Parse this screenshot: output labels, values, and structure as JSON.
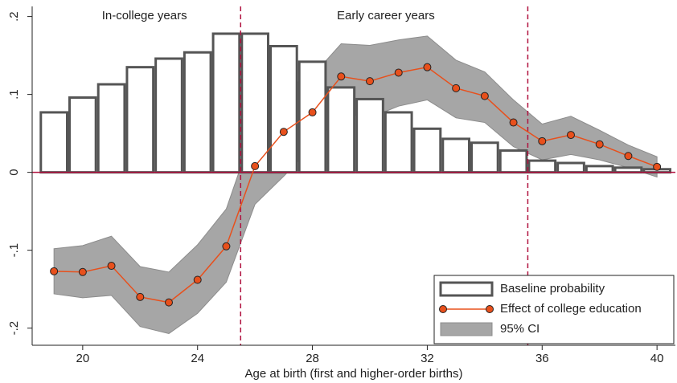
{
  "chart_data": {
    "type": "combo",
    "x_label": "Age at birth (first and higher-order births)",
    "annotations": [
      "In-college years",
      "Early career years"
    ],
    "x": [
      19,
      20,
      21,
      22,
      23,
      24,
      25,
      26,
      27,
      28,
      29,
      30,
      31,
      32,
      33,
      34,
      35,
      36,
      37,
      38,
      39,
      40
    ],
    "xlim": [
      18.24,
      40.64
    ],
    "xticks": [
      20,
      24,
      28,
      32,
      36,
      40
    ],
    "ylim": [
      -0.222,
      0.213
    ],
    "yticks": [
      {
        "value": -0.2,
        "label": "-.2"
      },
      {
        "value": -0.1,
        "label": "-.1"
      },
      0,
      {
        "value": 0.1,
        "label": ".1"
      },
      {
        "value": 0.2,
        "label": ".2"
      }
    ],
    "vlines": [
      25.5,
      35.5
    ],
    "hline": 0,
    "legend": "bottom-right",
    "series": [
      {
        "name": "Baseline probability",
        "type": "bar",
        "color": "#555555",
        "values": [
          0.077,
          0.096,
          0.113,
          0.135,
          0.146,
          0.154,
          0.178,
          0.178,
          0.162,
          0.142,
          0.109,
          0.094,
          0.077,
          0.056,
          0.043,
          0.038,
          0.028,
          0.015,
          0.012,
          0.008,
          0.006,
          0.004
        ]
      },
      {
        "name": "Effect of college education",
        "type": "line",
        "color": "#e8501c",
        "values": [
          -0.127,
          -0.128,
          -0.12,
          -0.16,
          -0.167,
          -0.138,
          -0.095,
          0.008,
          0.052,
          0.077,
          0.123,
          0.117,
          0.128,
          0.135,
          0.108,
          0.098,
          0.064,
          0.04,
          0.048,
          0.036,
          0.021,
          0.007
        ]
      },
      {
        "name": "95% CI",
        "type": "band",
        "color": "#a6a6a6",
        "upper": [
          -0.098,
          -0.094,
          -0.082,
          -0.121,
          -0.128,
          -0.093,
          -0.047,
          0.06,
          0.108,
          0.124,
          0.165,
          0.163,
          0.17,
          0.175,
          0.144,
          0.129,
          0.093,
          0.062,
          0.072,
          0.054,
          0.035,
          0.02
        ],
        "lower": [
          -0.156,
          -0.161,
          -0.158,
          -0.198,
          -0.207,
          -0.181,
          -0.141,
          -0.041,
          -0.005,
          0.033,
          0.077,
          0.07,
          0.085,
          0.093,
          0.07,
          0.064,
          0.033,
          0.016,
          0.023,
          0.016,
          0.006,
          -0.006
        ]
      }
    ]
  }
}
